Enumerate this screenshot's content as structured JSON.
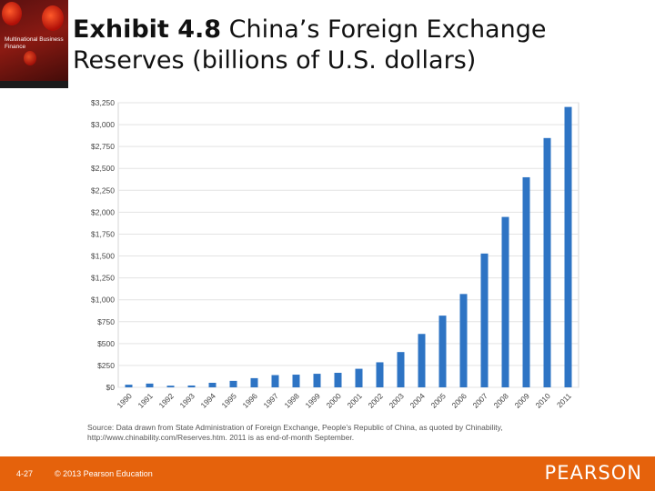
{
  "book": {
    "cover_title": "Multinational Business Finance"
  },
  "slide": {
    "exhibit_number": "Exhibit 4.8",
    "title_rest": "  China’s Foreign Exchange Reserves (billions of U.S. dollars)"
  },
  "chart_data": {
    "type": "bar",
    "title": "",
    "xlabel": "",
    "ylabel": "",
    "ylim": [
      0,
      3250
    ],
    "yticks": [
      0,
      250,
      500,
      750,
      1000,
      1250,
      1500,
      1750,
      2000,
      2250,
      2500,
      2750,
      3000,
      3250
    ],
    "ytick_labels": [
      "$0",
      "$250",
      "$500",
      "$750",
      "$1,000",
      "$1,250",
      "$1,500",
      "$1,750",
      "$2,000",
      "$2,250",
      "$2,500",
      "$2,750",
      "$3,000",
      "$3,250"
    ],
    "categories": [
      "1990",
      "1991",
      "1992",
      "1993",
      "1994",
      "1995",
      "1996",
      "1997",
      "1998",
      "1999",
      "2000",
      "2001",
      "2002",
      "2003",
      "2004",
      "2005",
      "2006",
      "2007",
      "2008",
      "2009",
      "2010",
      "2011"
    ],
    "values": [
      30,
      43,
      19,
      21,
      52,
      74,
      105,
      140,
      145,
      155,
      166,
      212,
      286,
      403,
      610,
      819,
      1066,
      1528,
      1946,
      2399,
      2847,
      3202
    ],
    "bar_color": "#2e74c4",
    "grid": true
  },
  "source_note": {
    "line1": "Source: Data drawn from State Administration of Foreign Exchange, People’s Republic of China, as quoted by Chinability,",
    "line2": "http://www.chinability.com/Reserves.htm. 2011 is as end-of-month September."
  },
  "footer": {
    "page_number": "4-27",
    "copyright": "© 2013 Pearson Education",
    "brand": "PEARSON",
    "color": "#e5620c"
  }
}
